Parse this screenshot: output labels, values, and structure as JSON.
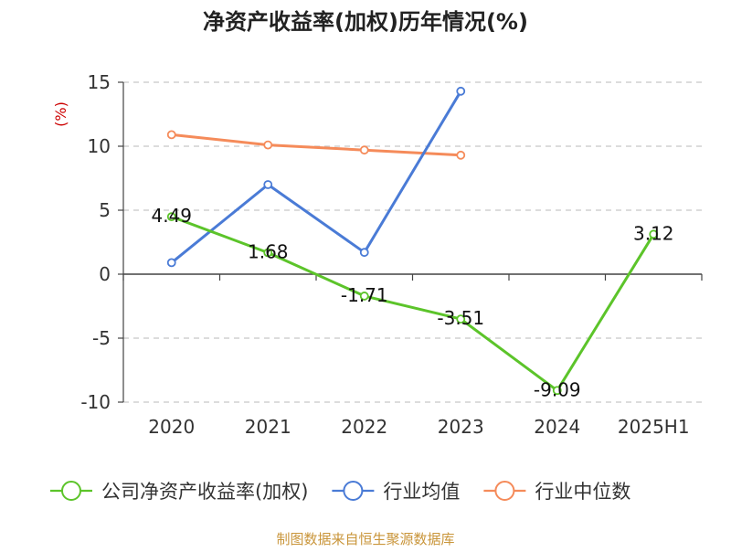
{
  "chart_data": {
    "type": "line",
    "title": "净资产收益率(加权)历年情况(%)",
    "y_unit": "(%)",
    "categories": [
      "2020",
      "2021",
      "2022",
      "2023",
      "2024",
      "2025H1"
    ],
    "ylim": [
      -10,
      15
    ],
    "yticks": [
      15,
      10,
      5,
      0,
      -5,
      -10
    ],
    "grid": true,
    "legend_position": "bottom",
    "series": [
      {
        "name": "公司净资产收益率(加权)",
        "color": "#5cc42a",
        "values": [
          4.49,
          1.68,
          -1.71,
          -3.51,
          -9.09,
          3.12
        ],
        "labels": [
          "4.49",
          "1.68",
          "-1.71",
          "-3.51",
          "-9.09",
          "3.12"
        ]
      },
      {
        "name": "行业均值",
        "color": "#4a7bd6",
        "values": [
          0.9,
          7.0,
          1.7,
          14.3,
          null,
          null
        ]
      },
      {
        "name": "行业中位数",
        "color": "#f58b5a",
        "values": [
          10.9,
          10.1,
          9.7,
          9.3,
          null,
          null
        ]
      }
    ]
  },
  "source": "制图数据来自恒生聚源数据库"
}
